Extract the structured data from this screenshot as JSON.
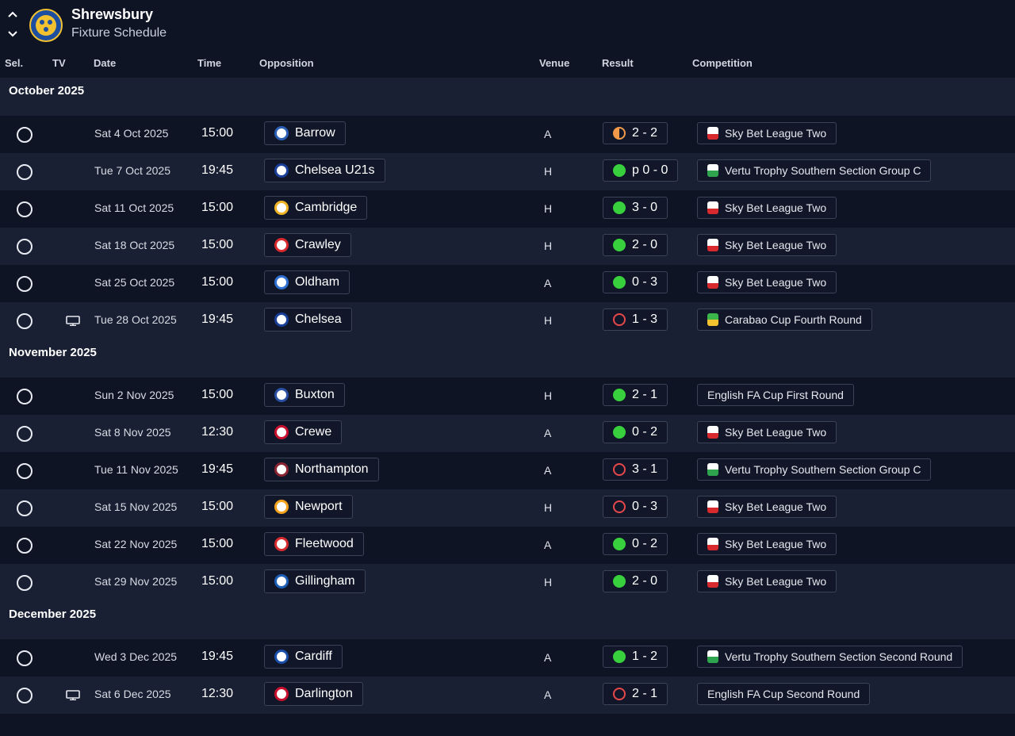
{
  "header": {
    "team": "Shrewsbury",
    "subtitle": "Fixture Schedule",
    "up_icon": "chevron-up-icon",
    "down_icon": "chevron-down-icon"
  },
  "columns": {
    "sel": "Sel.",
    "tv": "TV",
    "date": "Date",
    "time": "Time",
    "opposition": "Opposition",
    "venue": "Venue",
    "result": "Result",
    "competition": "Competition"
  },
  "colors": {
    "win": "#39d03d",
    "loss": "#e8474b",
    "draw": "#f2994a",
    "background": "#0f1425",
    "row_alt": "#1a2033"
  },
  "months": [
    {
      "label": "October 2025",
      "fixtures": [
        {
          "tv": false,
          "date": "Sat 4 Oct 2025",
          "time": "15:00",
          "opponent": "Barrow",
          "badge": "#2b5fb4",
          "venue": "A",
          "result": "draw",
          "score": "2 - 2",
          "competition": "Sky Bet League Two",
          "comp_icon": "league-two-icon"
        },
        {
          "tv": false,
          "date": "Tue 7 Oct 2025",
          "time": "19:45",
          "opponent": "Chelsea U21s",
          "badge": "#1a3f9a",
          "venue": "H",
          "result": "win",
          "score": "p 0 - 0",
          "competition": "Vertu Trophy Southern Section Group C",
          "comp_icon": "efl-trophy-icon"
        },
        {
          "tv": false,
          "date": "Sat 11 Oct 2025",
          "time": "15:00",
          "opponent": "Cambridge",
          "badge": "#f0b323",
          "venue": "H",
          "result": "win",
          "score": "3 - 0",
          "competition": "Sky Bet League Two",
          "comp_icon": "league-two-icon"
        },
        {
          "tv": false,
          "date": "Sat 18 Oct 2025",
          "time": "15:00",
          "opponent": "Crawley",
          "badge": "#d8292f",
          "venue": "H",
          "result": "win",
          "score": "2 - 0",
          "competition": "Sky Bet League Two",
          "comp_icon": "league-two-icon"
        },
        {
          "tv": false,
          "date": "Sat 25 Oct 2025",
          "time": "15:00",
          "opponent": "Oldham",
          "badge": "#2f6fd1",
          "venue": "A",
          "result": "win",
          "score": "0 - 3",
          "competition": "Sky Bet League Two",
          "comp_icon": "league-two-icon"
        },
        {
          "tv": true,
          "date": "Tue 28 Oct 2025",
          "time": "19:45",
          "opponent": "Chelsea",
          "badge": "#1a3f9a",
          "venue": "H",
          "result": "loss",
          "score": "1 - 3",
          "competition": "Carabao Cup Fourth Round",
          "comp_icon": "carabao-cup-icon"
        }
      ]
    },
    {
      "label": "November 2025",
      "fixtures": [
        {
          "tv": false,
          "date": "Sun 2 Nov 2025",
          "time": "15:00",
          "opponent": "Buxton",
          "badge": "#2a4fa3",
          "venue": "H",
          "result": "win",
          "score": "2 - 1",
          "competition": "English FA Cup First Round",
          "comp_icon": ""
        },
        {
          "tv": false,
          "date": "Sat 8 Nov 2025",
          "time": "12:30",
          "opponent": "Crewe",
          "badge": "#c8102e",
          "venue": "A",
          "result": "win",
          "score": "0 - 2",
          "competition": "Sky Bet League Two",
          "comp_icon": "league-two-icon"
        },
        {
          "tv": false,
          "date": "Tue 11 Nov 2025",
          "time": "19:45",
          "opponent": "Northampton",
          "badge": "#8a2432",
          "venue": "A",
          "result": "loss",
          "score": "3 - 1",
          "competition": "Vertu Trophy Southern Section Group C",
          "comp_icon": "efl-trophy-icon"
        },
        {
          "tv": false,
          "date": "Sat 15 Nov 2025",
          "time": "15:00",
          "opponent": "Newport",
          "badge": "#f4a21c",
          "venue": "H",
          "result": "loss",
          "score": "0 - 3",
          "competition": "Sky Bet League Two",
          "comp_icon": "league-two-icon"
        },
        {
          "tv": false,
          "date": "Sat 22 Nov 2025",
          "time": "15:00",
          "opponent": "Fleetwood",
          "badge": "#d62a2f",
          "venue": "A",
          "result": "win",
          "score": "0 - 2",
          "competition": "Sky Bet League Two",
          "comp_icon": "league-two-icon"
        },
        {
          "tv": false,
          "date": "Sat 29 Nov 2025",
          "time": "15:00",
          "opponent": "Gillingham",
          "badge": "#1d5fb7",
          "venue": "H",
          "result": "win",
          "score": "2 - 0",
          "competition": "Sky Bet League Two",
          "comp_icon": "league-two-icon"
        }
      ]
    },
    {
      "label": "December 2025",
      "fixtures": [
        {
          "tv": false,
          "date": "Wed 3 Dec 2025",
          "time": "19:45",
          "opponent": "Cardiff",
          "badge": "#1a4ea8",
          "venue": "A",
          "result": "win",
          "score": "1 - 2",
          "competition": "Vertu Trophy Southern Section Second Round",
          "comp_icon": "efl-trophy-icon"
        },
        {
          "tv": true,
          "date": "Sat 6 Dec 2025",
          "time": "12:30",
          "opponent": "Darlington",
          "badge": "#c8102e",
          "venue": "A",
          "result": "loss",
          "score": "2 - 1",
          "competition": "English FA Cup Second Round",
          "comp_icon": ""
        }
      ]
    }
  ]
}
